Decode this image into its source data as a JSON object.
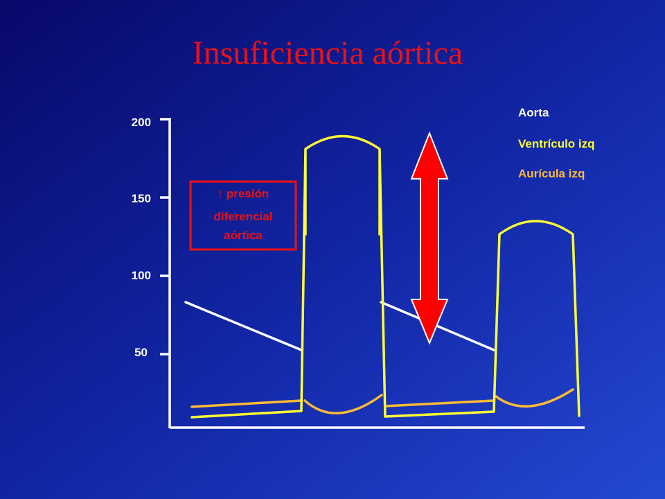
{
  "title": "Insuficiencia aórtica",
  "axis": {
    "ticks": [
      "200",
      "150",
      "100",
      "50"
    ]
  },
  "legend": [
    {
      "label": "Aorta"
    },
    {
      "label": "Ventrículo izq"
    },
    {
      "label": "Aurícula izq"
    }
  ],
  "annotation": {
    "lines": [
      "↑ presión",
      "diferencial",
      "aórtica"
    ]
  }
}
